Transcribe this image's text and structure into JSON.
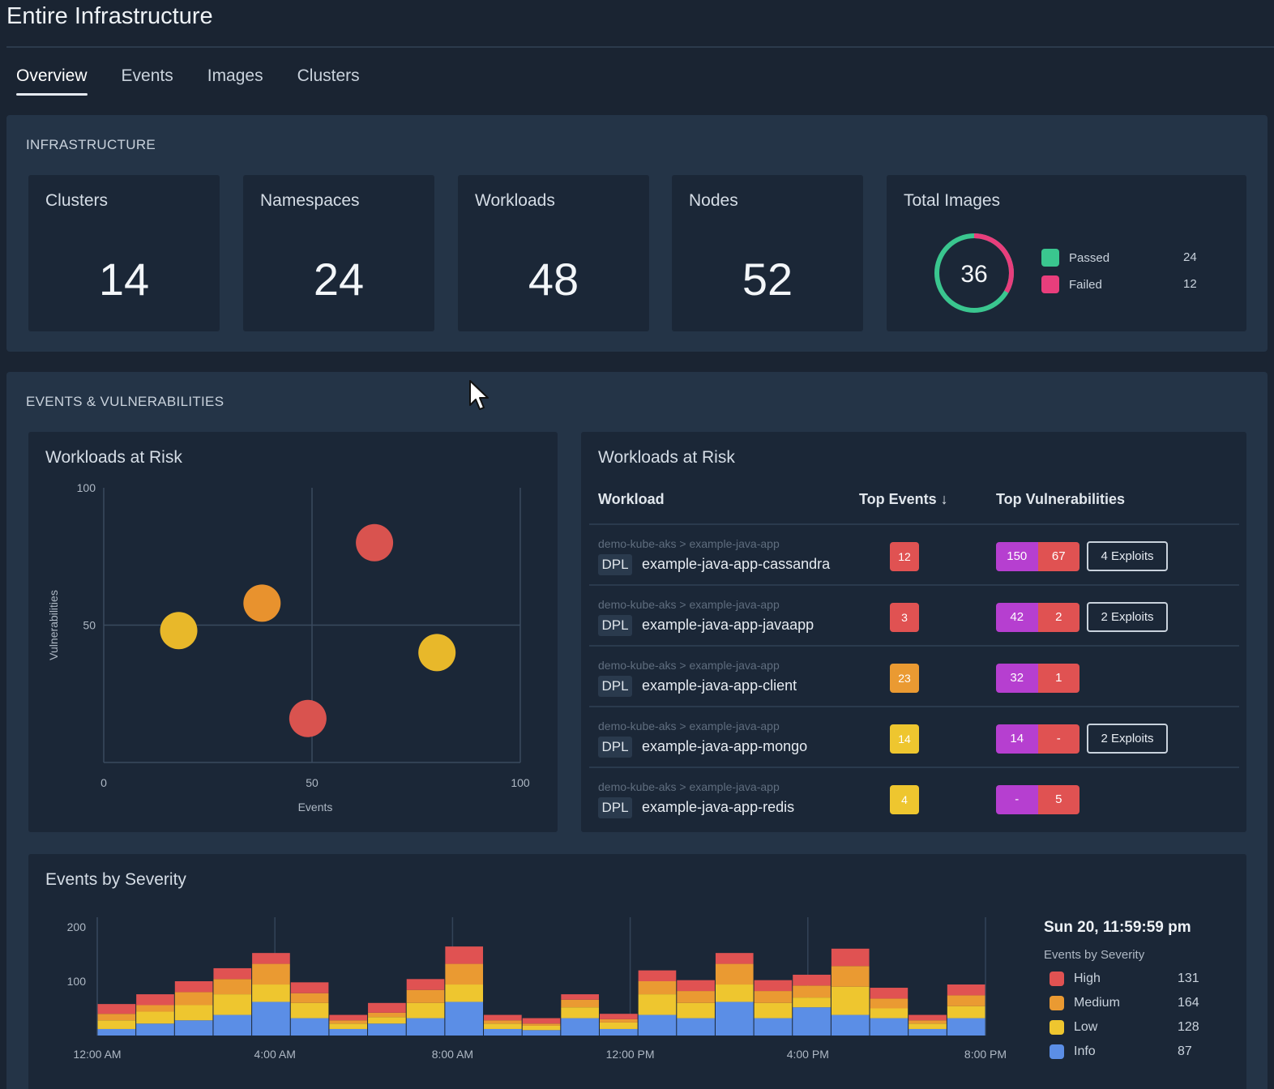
{
  "header": {
    "title": "Entire Infrastructure"
  },
  "tabs": [
    {
      "label": "Overview",
      "active": true
    },
    {
      "label": "Events",
      "active": false
    },
    {
      "label": "Images",
      "active": false
    },
    {
      "label": "Clusters",
      "active": false
    }
  ],
  "infrastructure": {
    "section_label": "INFRASTRUCTURE",
    "cards": [
      {
        "title": "Clusters",
        "value": "14"
      },
      {
        "title": "Namespaces",
        "value": "24"
      },
      {
        "title": "Workloads",
        "value": "48"
      },
      {
        "title": "Nodes",
        "value": "52"
      }
    ],
    "total_images": {
      "title": "Total Images",
      "total": "36",
      "passed": {
        "label": "Passed",
        "count": 24,
        "color": "#3ac68f"
      },
      "failed": {
        "label": "Failed",
        "count": 12,
        "color": "#e83e7c"
      }
    }
  },
  "events_vulns": {
    "section_label": "EVENTS & VULNERABILITIES",
    "scatter": {
      "title": "Workloads at Risk",
      "chart_data": {
        "type": "scatter",
        "title": "Workloads at Risk",
        "xlabel": "Events",
        "ylabel": "Vulnerabilities",
        "xlim": [
          0,
          100
        ],
        "ylim": [
          0,
          100
        ],
        "x_ticks": [
          "0",
          "50",
          "100"
        ],
        "y_ticks": [
          "100",
          "50"
        ],
        "points": [
          {
            "x": 65,
            "y": 80,
            "color": "#d9534f"
          },
          {
            "x": 38,
            "y": 58,
            "color": "#e8922e"
          },
          {
            "x": 18,
            "y": 48,
            "color": "#e8b82a"
          },
          {
            "x": 80,
            "y": 40,
            "color": "#e8b82a"
          },
          {
            "x": 49,
            "y": 16,
            "color": "#d9534f"
          }
        ]
      }
    },
    "table": {
      "title": "Workloads at Risk",
      "headers": {
        "workload": "Workload",
        "events": "Top Events ↓",
        "vulns": "Top Vulnerabilities"
      },
      "rows": [
        {
          "path": "demo-kube-aks  >  example-java-app",
          "kind": "DPL",
          "name": "example-java-app-cassandra",
          "events": "12",
          "events_color": "#e05252",
          "vuln_a": "150",
          "vuln_b": "67",
          "exploits": "4 Exploits"
        },
        {
          "path": "demo-kube-aks  >  example-java-app",
          "kind": "DPL",
          "name": "example-java-app-javaapp",
          "events": "3",
          "events_color": "#e05252",
          "vuln_a": "42",
          "vuln_b": "2",
          "exploits": "2 Exploits"
        },
        {
          "path": "demo-kube-aks  >  example-java-app",
          "kind": "DPL",
          "name": "example-java-app-client",
          "events": "23",
          "events_color": "#ea9a32",
          "vuln_a": "32",
          "vuln_b": "1",
          "exploits": ""
        },
        {
          "path": "demo-kube-aks  >  example-java-app",
          "kind": "DPL",
          "name": "example-java-app-mongo",
          "events": "14",
          "events_color": "#eec62f",
          "vuln_a": "14",
          "vuln_b": "-",
          "exploits": "2 Exploits"
        },
        {
          "path": "demo-kube-aks  >  example-java-app",
          "kind": "DPL",
          "name": "example-java-app-redis",
          "events": "4",
          "events_color": "#eec62f",
          "vuln_a": "-",
          "vuln_b": "5",
          "exploits": ""
        }
      ],
      "vuln_a_color": "#b63fd0",
      "vuln_b_color": "#e05252"
    },
    "severity": {
      "title": "Events by Severity",
      "timestamp": "Sun 20, 11:59:59 pm",
      "legend_title": "Events by Severity",
      "legend": [
        {
          "label": "High",
          "count": "131",
          "color": "#e05252"
        },
        {
          "label": "Medium",
          "count": "164",
          "color": "#ea9a32"
        },
        {
          "label": "Low",
          "count": "128",
          "color": "#eec62f"
        },
        {
          "label": "Info",
          "count": "87",
          "color": "#5b8ee6"
        }
      ],
      "chart_data": {
        "type": "bar",
        "stacked": true,
        "title": "Events by Severity",
        "ylim": [
          0,
          200
        ],
        "y_ticks": [
          "200",
          "100"
        ],
        "x_ticks": [
          "12:00 AM",
          "4:00 AM",
          "8:00 AM",
          "12:00 PM",
          "4:00 PM",
          "8:00 PM"
        ],
        "series": [
          {
            "name": "Info",
            "color": "#5b8ee6",
            "values": [
              12,
              22,
              28,
              38,
              62,
              32,
              12,
              22,
              32,
              62,
              12,
              10,
              32,
              12,
              38,
              32,
              62,
              32,
              52,
              38,
              32,
              12,
              32
            ]
          },
          {
            "name": "Low",
            "color": "#eec62f",
            "values": [
              16,
              22,
              28,
              38,
              32,
              28,
              10,
              12,
              28,
              32,
              10,
              8,
              20,
              12,
              38,
              28,
              32,
              28,
              18,
              52,
              18,
              10,
              22
            ]
          },
          {
            "name": "Medium",
            "color": "#ea9a32",
            "values": [
              12,
              12,
              24,
              28,
              38,
              18,
              6,
              8,
              24,
              38,
              6,
              4,
              14,
              6,
              24,
              22,
              38,
              22,
              22,
              38,
              18,
              6,
              20
            ]
          },
          {
            "name": "High",
            "color": "#e05252",
            "values": [
              18,
              20,
              20,
              20,
              20,
              20,
              10,
              18,
              20,
              32,
              10,
              10,
              10,
              10,
              20,
              20,
              20,
              20,
              20,
              32,
              20,
              10,
              20
            ]
          }
        ]
      }
    }
  }
}
